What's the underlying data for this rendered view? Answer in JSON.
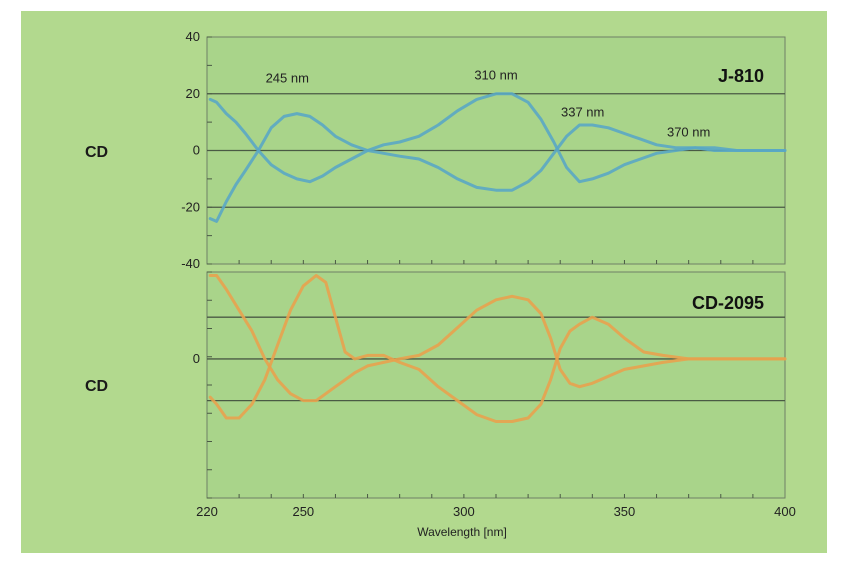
{
  "chart_data": [
    {
      "type": "line",
      "name": "J-810",
      "instrument_label": "J-810",
      "ylabel": "CD",
      "ylim": [
        -40,
        40
      ],
      "yticks": [
        "40",
        "20",
        "0",
        "-20",
        "-40"
      ],
      "xlim": [
        220,
        400
      ],
      "grid": true,
      "line_color": "#5aa7c4",
      "peak_labels": [
        {
          "text": "245 nm",
          "x": 245,
          "y": 24
        },
        {
          "text": "310 nm",
          "x": 310,
          "y": 25
        },
        {
          "text": "337 nm",
          "x": 337,
          "y": 12
        },
        {
          "text": "370 nm",
          "x": 370,
          "y": 5
        }
      ],
      "series": [
        {
          "x": [
            221,
            223,
            226,
            229,
            232,
            236,
            240,
            244,
            248,
            252,
            256,
            260,
            265,
            270,
            275,
            280,
            286,
            292,
            298,
            304,
            310,
            315,
            320,
            324,
            328,
            332,
            336,
            340,
            345,
            350,
            355,
            360,
            366,
            372,
            378,
            385,
            392,
            400
          ],
          "y": [
            18,
            17,
            13,
            10,
            6,
            0,
            -5,
            -8,
            -10,
            -11,
            -9,
            -6,
            -3,
            0,
            2,
            3,
            5,
            9,
            14,
            18,
            20,
            20,
            17,
            11,
            3,
            -6,
            -11,
            -10,
            -8,
            -5,
            -3,
            -1,
            0,
            1,
            1,
            0,
            0,
            0
          ]
        },
        {
          "x": [
            221,
            223,
            226,
            229,
            232,
            236,
            240,
            244,
            248,
            252,
            256,
            260,
            265,
            270,
            275,
            280,
            286,
            292,
            298,
            304,
            310,
            315,
            320,
            324,
            328,
            332,
            336,
            340,
            345,
            350,
            355,
            360,
            366,
            372,
            378,
            385,
            392,
            400
          ],
          "y": [
            -24,
            -25,
            -18,
            -12,
            -7,
            0,
            8,
            12,
            13,
            12,
            9,
            5,
            2,
            0,
            -1,
            -2,
            -3,
            -6,
            -10,
            -13,
            -14,
            -14,
            -11,
            -7,
            -1,
            5,
            9,
            9,
            8,
            6,
            4,
            2,
            1,
            1,
            0,
            0,
            0,
            0
          ]
        }
      ]
    },
    {
      "type": "line",
      "name": "CD-2095",
      "instrument_label": "CD-2095",
      "ylabel": "CD",
      "yticks": [
        "0"
      ],
      "ylim": [
        -40,
        25
      ],
      "xlim": [
        220,
        400
      ],
      "xticks": [
        "220",
        "250",
        "300",
        "350",
        "400"
      ],
      "xlabel": "Wavelength [nm]",
      "grid": true,
      "line_color": "#e8a24e",
      "series": [
        {
          "x": [
            221,
            223,
            226,
            230,
            234,
            238,
            242,
            246,
            250,
            254,
            257,
            260,
            263,
            266,
            270,
            275,
            280,
            286,
            292,
            298,
            304,
            310,
            315,
            320,
            324,
            327,
            330,
            333,
            336,
            340,
            345,
            350,
            356,
            362,
            370,
            380,
            390,
            400
          ],
          "y": [
            24,
            24,
            20,
            14,
            8,
            0,
            -6,
            -10,
            -12,
            -12,
            -10,
            -8,
            -6,
            -4,
            -2,
            -1,
            0,
            1,
            4,
            9,
            14,
            17,
            18,
            17,
            13,
            6,
            -3,
            -7,
            -8,
            -7,
            -5,
            -3,
            -2,
            -1,
            0,
            0,
            0,
            0
          ]
        },
        {
          "x": [
            221,
            223,
            226,
            230,
            234,
            238,
            242,
            246,
            250,
            254,
            257,
            260,
            263,
            266,
            270,
            275,
            280,
            286,
            292,
            298,
            304,
            310,
            315,
            320,
            324,
            327,
            330,
            333,
            336,
            340,
            345,
            350,
            356,
            362,
            370,
            380,
            390,
            400
          ],
          "y": [
            -11,
            -13,
            -17,
            -17,
            -13,
            -6,
            4,
            14,
            21,
            24,
            22,
            12,
            2,
            0,
            1,
            1,
            -1,
            -3,
            -8,
            -12,
            -16,
            -18,
            -18,
            -17,
            -13,
            -6,
            3,
            8,
            10,
            12,
            10,
            6,
            2,
            1,
            0,
            0,
            0,
            0
          ]
        }
      ]
    }
  ]
}
